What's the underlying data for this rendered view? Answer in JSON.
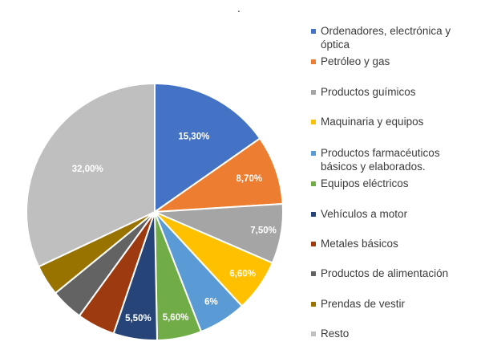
{
  "chart_data": {
    "type": "pie",
    "title": ".",
    "slices": [
      {
        "label": "Ordenadores, electrónica y óptica",
        "value": 15.3,
        "display": "15,30%",
        "color": "#4472c4"
      },
      {
        "label": "Petróleo y gas",
        "value": 8.7,
        "display": "8,70%",
        "color": "#ed7d31"
      },
      {
        "label": "Productos guímicos",
        "value": 7.5,
        "display": "7,50%",
        "color": "#a5a5a5"
      },
      {
        "label": "Maquinaria y equipos",
        "value": 6.6,
        "display": "6,60%",
        "color": "#ffc000"
      },
      {
        "label": "Productos farmacéuticos básicos y elaborados.",
        "value": 6.0,
        "display": "6%",
        "color": "#5b9bd5"
      },
      {
        "label": "Equipos eléctricos",
        "value": 5.6,
        "display": "5,60%",
        "color": "#70ad47"
      },
      {
        "label": "Vehículos a motor",
        "value": 5.5,
        "display": "5,50%",
        "color": "#264478"
      },
      {
        "label": "Metales básicos",
        "value": 4.8,
        "display": "",
        "color": "#9e3a0f"
      },
      {
        "label": "Productos de alimentación",
        "value": 4.1,
        "display": "",
        "color": "#636363"
      },
      {
        "label": "Prendas de vestir",
        "value": 3.9,
        "display": "",
        "color": "#997300"
      },
      {
        "label": "Resto",
        "value": 32.0,
        "display": "32,00%",
        "color": "#bfbfbf"
      }
    ],
    "legend_position": "right"
  }
}
